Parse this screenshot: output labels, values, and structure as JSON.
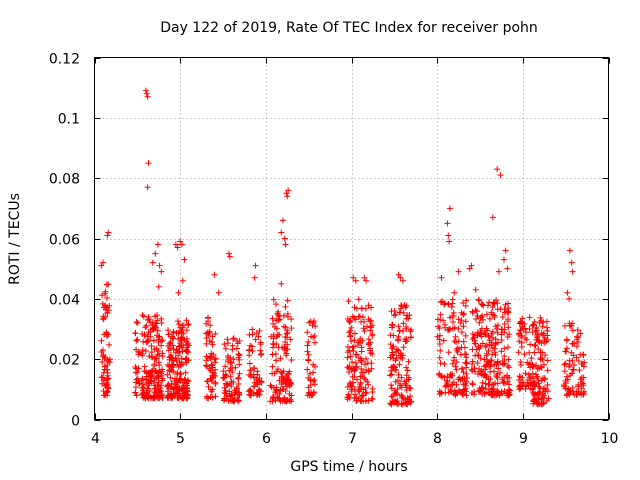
{
  "chart_data": {
    "type": "scatter",
    "title": "Day 122 of 2019, Rate Of TEC Index for receiver pohn",
    "xlabel": "GPS time / hours",
    "ylabel": "ROTI / TECUs",
    "xlim": [
      4,
      10
    ],
    "ylim": [
      0,
      0.12
    ],
    "xticks": [
      4,
      5,
      6,
      7,
      8,
      9,
      10
    ],
    "xtick_labels": [
      "4",
      "5",
      "6",
      "7",
      "8",
      "9",
      "10"
    ],
    "yticks": [
      0,
      0.02,
      0.04,
      0.06,
      0.08,
      0.1,
      0.12
    ],
    "ytick_labels": [
      "0",
      "0.02",
      "0.04",
      "0.06",
      "0.08",
      "0.1",
      "0.12"
    ],
    "grid": true,
    "marker": "+",
    "color": "#ff0000",
    "series": [
      {
        "name": "ROTI",
        "clusters": [
          {
            "x": [
              4.08,
              4.18
            ],
            "ymin": 0.008,
            "ymax": 0.045,
            "n": 70
          },
          {
            "x": [
              4.47,
              4.53
            ],
            "ymin": 0.008,
            "ymax": 0.033,
            "n": 25
          },
          {
            "x": [
              4.55,
              4.8
            ],
            "ymin": 0.007,
            "ymax": 0.035,
            "n": 170
          },
          {
            "x": [
              4.85,
              5.1
            ],
            "ymin": 0.007,
            "ymax": 0.033,
            "n": 200
          },
          {
            "x": [
              5.3,
              5.42
            ],
            "ymin": 0.007,
            "ymax": 0.035,
            "n": 60
          },
          {
            "x": [
              5.5,
              5.7
            ],
            "ymin": 0.006,
            "ymax": 0.028,
            "n": 90
          },
          {
            "x": [
              5.8,
              5.95
            ],
            "ymin": 0.008,
            "ymax": 0.03,
            "n": 60
          },
          {
            "x": [
              6.05,
              6.3
            ],
            "ymin": 0.006,
            "ymax": 0.04,
            "n": 130
          },
          {
            "x": [
              6.48,
              6.58
            ],
            "ymin": 0.008,
            "ymax": 0.034,
            "n": 40
          },
          {
            "x": [
              6.95,
              7.25
            ],
            "ymin": 0.006,
            "ymax": 0.04,
            "n": 150
          },
          {
            "x": [
              7.45,
              7.7
            ],
            "ymin": 0.005,
            "ymax": 0.038,
            "n": 140
          },
          {
            "x": [
              8.0,
              8.35
            ],
            "ymin": 0.008,
            "ymax": 0.04,
            "n": 140
          },
          {
            "x": [
              8.4,
              8.85
            ],
            "ymin": 0.008,
            "ymax": 0.04,
            "n": 240
          },
          {
            "x": [
              8.95,
              9.1
            ],
            "ymin": 0.01,
            "ymax": 0.034,
            "n": 60
          },
          {
            "x": [
              9.1,
              9.3
            ],
            "ymin": 0.005,
            "ymax": 0.034,
            "n": 120
          },
          {
            "x": [
              9.48,
              9.6
            ],
            "ymin": 0.008,
            "ymax": 0.032,
            "n": 50
          },
          {
            "x": [
              9.62,
              9.72
            ],
            "ymin": 0.008,
            "ymax": 0.03,
            "n": 35
          }
        ],
        "outliers": [
          [
            4.08,
            0.051
          ],
          [
            4.1,
            0.052
          ],
          [
            4.15,
            0.061
          ],
          [
            4.16,
            0.062
          ],
          [
            4.6,
            0.109
          ],
          [
            4.61,
            0.108
          ],
          [
            4.62,
            0.107
          ],
          [
            4.63,
            0.085
          ],
          [
            4.62,
            0.077
          ],
          [
            4.68,
            0.052
          ],
          [
            4.71,
            0.055
          ],
          [
            4.74,
            0.058
          ],
          [
            4.76,
            0.051
          ],
          [
            4.78,
            0.049
          ],
          [
            4.75,
            0.044
          ],
          [
            4.95,
            0.058
          ],
          [
            4.97,
            0.057
          ],
          [
            5.0,
            0.059
          ],
          [
            5.02,
            0.058
          ],
          [
            5.05,
            0.053
          ],
          [
            5.03,
            0.046
          ],
          [
            4.98,
            0.042
          ],
          [
            5.4,
            0.048
          ],
          [
            5.45,
            0.042
          ],
          [
            5.57,
            0.055
          ],
          [
            5.58,
            0.054
          ],
          [
            5.88,
            0.051
          ],
          [
            5.87,
            0.047
          ],
          [
            6.18,
            0.062
          ],
          [
            6.2,
            0.066
          ],
          [
            6.22,
            0.06
          ],
          [
            6.23,
            0.058
          ],
          [
            6.24,
            0.075
          ],
          [
            6.26,
            0.076
          ],
          [
            6.25,
            0.074
          ],
          [
            6.18,
            0.045
          ],
          [
            7.02,
            0.047
          ],
          [
            7.05,
            0.046
          ],
          [
            7.15,
            0.047
          ],
          [
            7.17,
            0.046
          ],
          [
            7.55,
            0.048
          ],
          [
            7.57,
            0.047
          ],
          [
            7.6,
            0.046
          ],
          [
            8.05,
            0.047
          ],
          [
            8.12,
            0.065
          ],
          [
            8.15,
            0.07
          ],
          [
            8.13,
            0.061
          ],
          [
            8.14,
            0.059
          ],
          [
            8.2,
            0.042
          ],
          [
            8.25,
            0.049
          ],
          [
            8.38,
            0.05
          ],
          [
            8.4,
            0.051
          ],
          [
            8.45,
            0.043
          ],
          [
            8.65,
            0.067
          ],
          [
            8.7,
            0.083
          ],
          [
            8.74,
            0.081
          ],
          [
            8.72,
            0.049
          ],
          [
            8.78,
            0.053
          ],
          [
            8.8,
            0.056
          ],
          [
            8.82,
            0.05
          ],
          [
            9.55,
            0.056
          ],
          [
            9.57,
            0.052
          ],
          [
            9.58,
            0.049
          ],
          [
            9.52,
            0.042
          ],
          [
            9.54,
            0.04
          ]
        ]
      }
    ]
  }
}
